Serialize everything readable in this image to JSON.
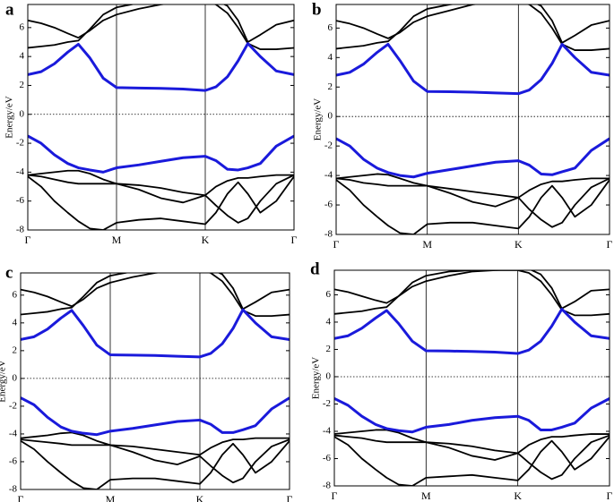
{
  "chart_data": [
    {
      "type": "line",
      "label": "a",
      "ylabel": "Energy/eV",
      "x": [
        0,
        0.15,
        0.3,
        0.45,
        0.57,
        0.7,
        0.85,
        1,
        1.25,
        1.5,
        1.75,
        2,
        2.12,
        2.25,
        2.37,
        2.48,
        2.62,
        2.8,
        3
      ],
      "xlim": [
        0,
        3
      ],
      "xticks": [
        {
          "value": 0,
          "label": "Γ"
        },
        {
          "value": 1,
          "label": "M"
        },
        {
          "value": 2,
          "label": "K"
        },
        {
          "value": 3,
          "label": "Γ"
        }
      ],
      "ylim": [
        -8,
        7.6
      ],
      "yticks": [
        -8,
        -6,
        -4,
        -2,
        0,
        2,
        4,
        6
      ],
      "xgrid": true,
      "reference_line": 0,
      "series": [
        {
          "color": "#1a1adb",
          "values": [
            2.75,
            2.95,
            3.5,
            4.3,
            4.85,
            3.9,
            2.5,
            1.85,
            1.82,
            1.8,
            1.75,
            1.65,
            1.9,
            2.6,
            3.7,
            4.9,
            4.0,
            3.0,
            2.75
          ]
        },
        {
          "color": "#1a1adb",
          "values": [
            -1.5,
            -2.0,
            -2.8,
            -3.4,
            -3.7,
            -3.85,
            -4.0,
            -3.7,
            -3.5,
            -3.25,
            -3.0,
            -2.9,
            -3.2,
            -3.8,
            -3.85,
            -3.7,
            -3.4,
            -2.2,
            -1.5
          ]
        },
        {
          "color": "#000000",
          "values": [
            6.5,
            6.3,
            6.0,
            5.6,
            5.3,
            5.8,
            6.5,
            6.9,
            7.3,
            7.6,
            7.8,
            7.9,
            7.9,
            7.5,
            6.5,
            5.0,
            5.5,
            6.2,
            6.5
          ]
        },
        {
          "color": "#000000",
          "values": [
            4.6,
            4.7,
            4.8,
            5.0,
            5.1,
            5.9,
            6.9,
            7.4,
            7.7,
            7.8,
            7.8,
            7.8,
            7.6,
            7.0,
            6.0,
            4.9,
            4.5,
            4.5,
            4.6
          ]
        },
        {
          "color": "#000000",
          "values": [
            -4.2,
            -4.1,
            -4.0,
            -3.9,
            -3.9,
            -4.1,
            -4.5,
            -4.8,
            -4.9,
            -5.1,
            -5.4,
            -5.6,
            -5.0,
            -4.6,
            -4.4,
            -4.4,
            -4.3,
            -4.2,
            -4.2
          ]
        },
        {
          "color": "#000000",
          "values": [
            -4.2,
            -4.3,
            -4.5,
            -4.7,
            -4.8,
            -4.8,
            -4.8,
            -4.8,
            -5.2,
            -5.8,
            -6.1,
            -5.6,
            -6.3,
            -7.0,
            -7.5,
            -7.2,
            -6.0,
            -4.8,
            -4.2
          ]
        },
        {
          "color": "#000000",
          "values": [
            -4.3,
            -5.0,
            -6.0,
            -6.8,
            -7.4,
            -7.9,
            -8.0,
            -7.5,
            -7.3,
            -7.2,
            -7.4,
            -7.6,
            -6.8,
            -5.5,
            -4.7,
            -5.5,
            -6.8,
            -6.0,
            -4.3
          ]
        }
      ]
    },
    {
      "type": "line",
      "label": "b",
      "ylabel": "Energy/eV",
      "x": [
        0,
        0.15,
        0.3,
        0.45,
        0.57,
        0.7,
        0.85,
        1,
        1.25,
        1.5,
        1.75,
        2,
        2.12,
        2.25,
        2.37,
        2.48,
        2.62,
        2.8,
        3
      ],
      "xlim": [
        0,
        3
      ],
      "xticks": [
        {
          "value": 0,
          "label": "Γ"
        },
        {
          "value": 1,
          "label": "M"
        },
        {
          "value": 2,
          "label": "K"
        },
        {
          "value": 3,
          "label": "Γ"
        }
      ],
      "ylim": [
        -8,
        7.6
      ],
      "yticks": [
        -8,
        -6,
        -4,
        -2,
        0,
        2,
        4,
        6
      ],
      "xgrid": true,
      "reference_line": 0,
      "series": [
        {
          "color": "#1a1adb",
          "values": [
            2.8,
            3.0,
            3.55,
            4.35,
            4.9,
            3.8,
            2.4,
            1.7,
            1.68,
            1.65,
            1.6,
            1.55,
            1.8,
            2.5,
            3.6,
            4.9,
            4.0,
            3.0,
            2.8
          ]
        },
        {
          "color": "#1a1adb",
          "values": [
            -1.5,
            -2.0,
            -2.9,
            -3.5,
            -3.8,
            -4.0,
            -4.1,
            -3.85,
            -3.6,
            -3.35,
            -3.1,
            -3.0,
            -3.3,
            -3.9,
            -3.95,
            -3.75,
            -3.5,
            -2.3,
            -1.5
          ]
        },
        {
          "color": "#000000",
          "values": [
            6.5,
            6.3,
            6.0,
            5.6,
            5.3,
            5.7,
            6.4,
            6.8,
            7.2,
            7.6,
            7.8,
            7.9,
            7.9,
            7.5,
            6.5,
            5.0,
            5.5,
            6.2,
            6.5
          ]
        },
        {
          "color": "#000000",
          "values": [
            4.6,
            4.7,
            4.8,
            5.0,
            5.1,
            5.8,
            6.8,
            7.3,
            7.6,
            7.8,
            7.8,
            7.8,
            7.6,
            7.0,
            6.0,
            4.9,
            4.5,
            4.5,
            4.6
          ]
        },
        {
          "color": "#000000",
          "values": [
            -4.2,
            -4.1,
            -4.0,
            -3.9,
            -3.95,
            -4.2,
            -4.5,
            -4.7,
            -4.9,
            -5.1,
            -5.3,
            -5.5,
            -5.0,
            -4.6,
            -4.4,
            -4.4,
            -4.3,
            -4.2,
            -4.2
          ]
        },
        {
          "color": "#000000",
          "values": [
            -4.2,
            -4.3,
            -4.5,
            -4.6,
            -4.7,
            -4.7,
            -4.7,
            -4.7,
            -5.2,
            -5.8,
            -6.1,
            -5.5,
            -6.3,
            -7.0,
            -7.5,
            -7.2,
            -6.0,
            -4.8,
            -4.2
          ]
        },
        {
          "color": "#000000",
          "values": [
            -4.3,
            -5.0,
            -6.0,
            -6.8,
            -7.4,
            -7.9,
            -8.0,
            -7.3,
            -7.2,
            -7.2,
            -7.4,
            -7.6,
            -6.8,
            -5.5,
            -4.7,
            -5.5,
            -6.8,
            -6.0,
            -4.3
          ]
        }
      ]
    },
    {
      "type": "line",
      "label": "c",
      "ylabel": "Energy/eV",
      "x": [
        0,
        0.15,
        0.3,
        0.45,
        0.57,
        0.7,
        0.85,
        1,
        1.25,
        1.5,
        1.75,
        2,
        2.12,
        2.25,
        2.37,
        2.48,
        2.62,
        2.8,
        3
      ],
      "xlim": [
        0,
        3
      ],
      "xticks": [
        {
          "value": 0,
          "label": "Γ"
        },
        {
          "value": 1,
          "label": "M"
        },
        {
          "value": 2,
          "label": "K"
        },
        {
          "value": 3,
          "label": "Γ"
        }
      ],
      "ylim": [
        -8,
        7.6
      ],
      "yticks": [
        -8,
        -6,
        -4,
        -2,
        0,
        2,
        4,
        6
      ],
      "xgrid": true,
      "reference_line": 0,
      "series": [
        {
          "color": "#1a1adb",
          "values": [
            2.8,
            3.0,
            3.55,
            4.35,
            4.9,
            3.8,
            2.4,
            1.7,
            1.68,
            1.65,
            1.6,
            1.55,
            1.8,
            2.5,
            3.6,
            4.95,
            4.0,
            3.0,
            2.8
          ]
        },
        {
          "color": "#1a1adb",
          "values": [
            -1.4,
            -1.9,
            -2.8,
            -3.5,
            -3.8,
            -3.95,
            -4.05,
            -3.8,
            -3.6,
            -3.35,
            -3.1,
            -3.0,
            -3.3,
            -3.9,
            -3.9,
            -3.7,
            -3.4,
            -2.2,
            -1.4
          ]
        },
        {
          "color": "#000000",
          "values": [
            6.4,
            6.2,
            5.9,
            5.5,
            5.2,
            5.7,
            6.5,
            6.9,
            7.3,
            7.6,
            7.8,
            7.9,
            7.9,
            7.5,
            6.5,
            5.0,
            5.5,
            6.2,
            6.4
          ]
        },
        {
          "color": "#000000",
          "values": [
            4.6,
            4.7,
            4.8,
            5.0,
            5.1,
            5.9,
            6.9,
            7.4,
            7.7,
            7.8,
            7.8,
            7.8,
            7.6,
            7.0,
            6.0,
            4.9,
            4.5,
            4.5,
            4.6
          ]
        },
        {
          "color": "#000000",
          "values": [
            -4.3,
            -4.2,
            -4.1,
            -3.95,
            -3.9,
            -4.1,
            -4.5,
            -4.8,
            -4.9,
            -5.1,
            -5.3,
            -5.5,
            -5.0,
            -4.6,
            -4.4,
            -4.4,
            -4.3,
            -4.3,
            -4.3
          ]
        },
        {
          "color": "#000000",
          "values": [
            -4.4,
            -4.5,
            -4.6,
            -4.7,
            -4.8,
            -4.8,
            -4.8,
            -4.8,
            -5.3,
            -5.9,
            -6.2,
            -5.6,
            -6.3,
            -7.0,
            -7.5,
            -7.2,
            -6.0,
            -4.9,
            -4.4
          ]
        },
        {
          "color": "#000000",
          "values": [
            -4.5,
            -5.1,
            -6.0,
            -6.8,
            -7.4,
            -7.9,
            -8.0,
            -7.3,
            -7.2,
            -7.2,
            -7.4,
            -7.6,
            -6.8,
            -5.5,
            -4.7,
            -5.5,
            -6.8,
            -6.0,
            -4.5
          ]
        }
      ]
    },
    {
      "type": "line",
      "label": "d",
      "ylabel": "Energy/eV",
      "x": [
        0,
        0.15,
        0.3,
        0.45,
        0.57,
        0.7,
        0.85,
        1,
        1.25,
        1.5,
        1.75,
        2,
        2.12,
        2.25,
        2.37,
        2.48,
        2.62,
        2.8,
        3
      ],
      "xlim": [
        0,
        3
      ],
      "xticks": [
        {
          "value": 0,
          "label": "Γ"
        },
        {
          "value": 1,
          "label": "M"
        },
        {
          "value": 2,
          "label": "K"
        },
        {
          "value": 3,
          "label": "Γ"
        }
      ],
      "ylim": [
        -8,
        7.8
      ],
      "yticks": [
        -8,
        -6,
        -4,
        -2,
        0,
        2,
        4,
        6
      ],
      "xgrid": true,
      "reference_line": 0,
      "series": [
        {
          "color": "#1a1adb",
          "values": [
            2.8,
            3.0,
            3.55,
            4.3,
            4.85,
            3.9,
            2.6,
            1.9,
            1.88,
            1.85,
            1.8,
            1.7,
            1.95,
            2.6,
            3.7,
            4.95,
            4.0,
            3.0,
            2.8
          ]
        },
        {
          "color": "#1a1adb",
          "values": [
            -1.6,
            -2.1,
            -2.9,
            -3.5,
            -3.8,
            -3.95,
            -4.05,
            -3.7,
            -3.5,
            -3.2,
            -3.0,
            -2.9,
            -3.2,
            -3.9,
            -3.9,
            -3.7,
            -3.4,
            -2.3,
            -1.6
          ]
        },
        {
          "color": "#000000",
          "values": [
            6.4,
            6.2,
            5.9,
            5.6,
            5.4,
            5.9,
            6.6,
            7.0,
            7.4,
            7.7,
            7.8,
            7.9,
            7.9,
            7.5,
            6.5,
            5.0,
            5.5,
            6.3,
            6.4
          ]
        },
        {
          "color": "#000000",
          "values": [
            4.6,
            4.7,
            4.8,
            5.0,
            5.1,
            5.9,
            6.9,
            7.4,
            7.7,
            7.8,
            7.8,
            7.8,
            7.6,
            7.0,
            6.0,
            4.9,
            4.5,
            4.5,
            4.6
          ]
        },
        {
          "color": "#000000",
          "values": [
            -4.2,
            -4.1,
            -4.0,
            -3.9,
            -3.9,
            -4.1,
            -4.5,
            -4.8,
            -4.9,
            -5.1,
            -5.4,
            -5.6,
            -5.0,
            -4.6,
            -4.4,
            -4.4,
            -4.3,
            -4.2,
            -4.2
          ]
        },
        {
          "color": "#000000",
          "values": [
            -4.3,
            -4.4,
            -4.5,
            -4.7,
            -4.8,
            -4.8,
            -4.8,
            -4.8,
            -5.2,
            -5.8,
            -6.1,
            -5.6,
            -6.3,
            -7.0,
            -7.5,
            -7.2,
            -6.0,
            -4.8,
            -4.3
          ]
        },
        {
          "color": "#000000",
          "values": [
            -4.4,
            -5.0,
            -6.0,
            -6.8,
            -7.4,
            -7.9,
            -8.0,
            -7.4,
            -7.3,
            -7.2,
            -7.4,
            -7.6,
            -6.8,
            -5.5,
            -4.7,
            -5.5,
            -6.8,
            -6.0,
            -4.4
          ]
        }
      ]
    }
  ]
}
